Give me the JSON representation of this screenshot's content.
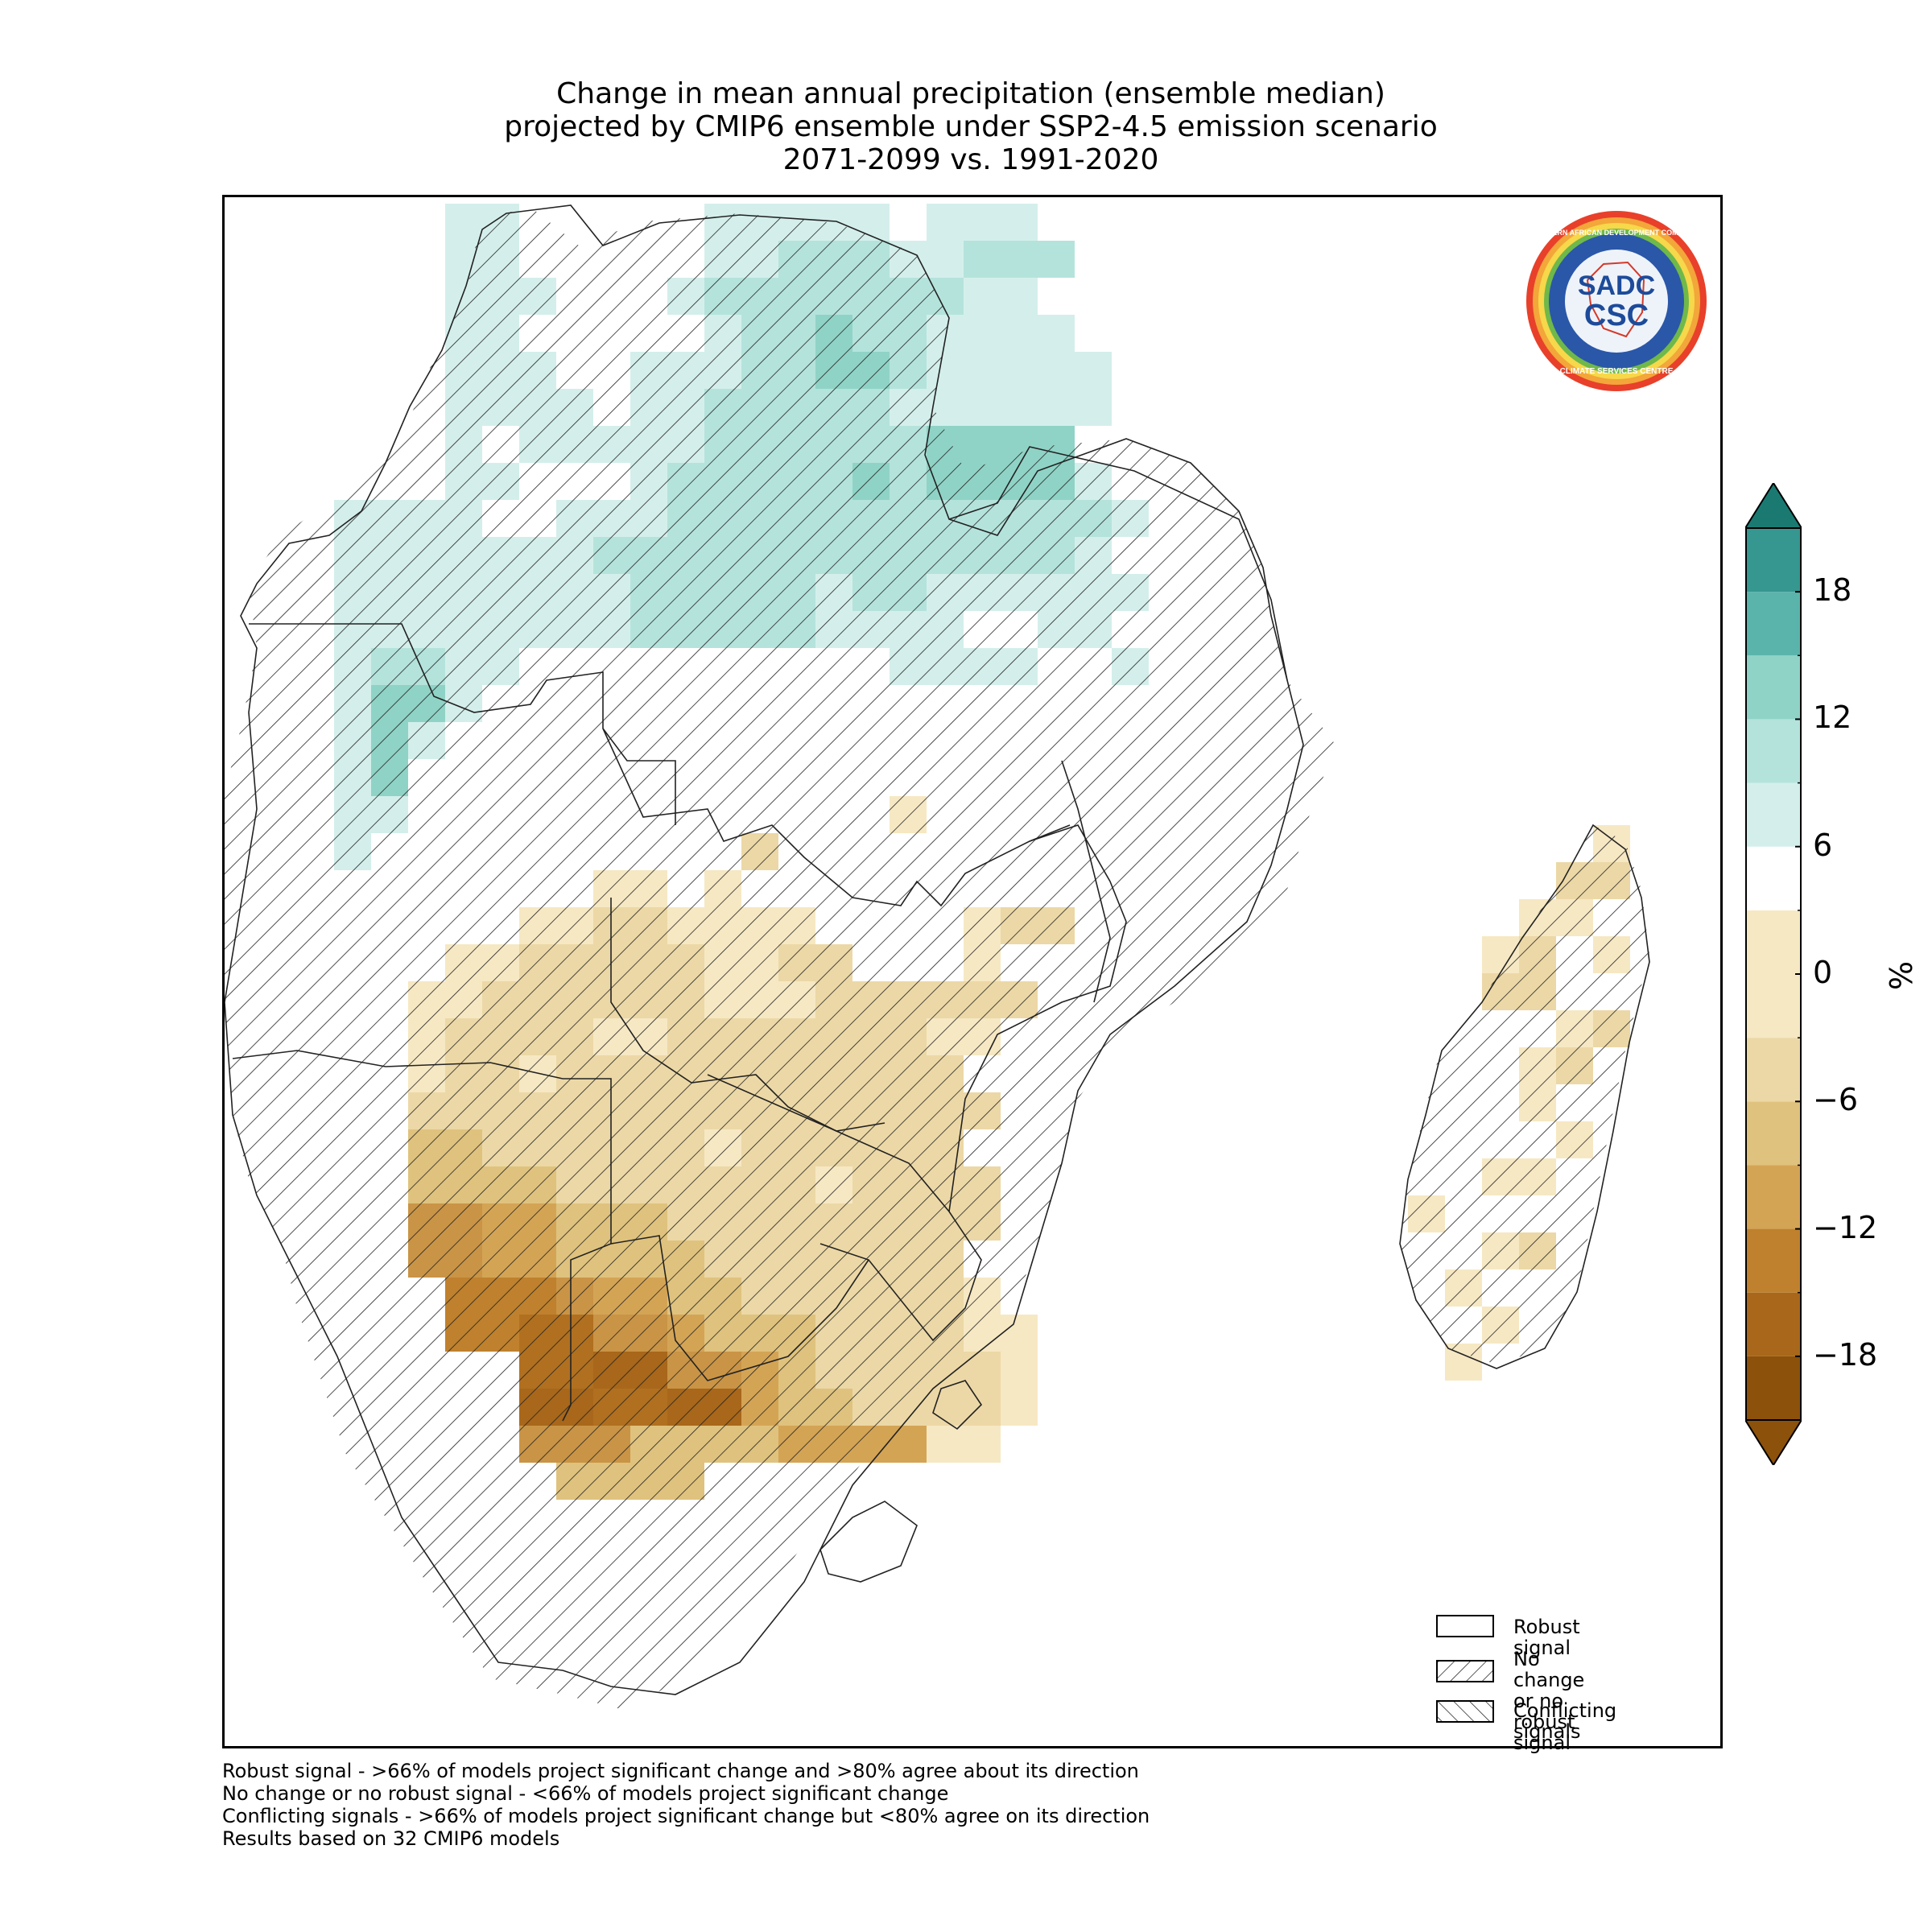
{
  "title": {
    "line1": "Change in mean annual precipitation (ensemble median)",
    "line2": "projected by CMIP6 ensemble under SSP2-4.5 emission scenario",
    "line3": "2071-2099 vs. 1991-2020"
  },
  "logo": {
    "ring_text_top": "SOUTHERN AFRICAN DEVELOPMENT COMMUNITY",
    "ring_text_bottom": "CLIMATE SERVICES CENTRE",
    "center_top": "SADC",
    "center_bottom": "CSC"
  },
  "legend": {
    "items": [
      {
        "label": "Robust signal",
        "pattern": "none"
      },
      {
        "label": "No change\nor no robust signal",
        "pattern": "diagonal-forward"
      },
      {
        "label": "Conflicting signals",
        "pattern": "diagonal-backward"
      }
    ]
  },
  "colorbar": {
    "unit": "%",
    "ticks": [
      "18",
      "12",
      "6",
      "0",
      "−6",
      "−12",
      "−18"
    ],
    "min": -21,
    "max": 21,
    "colors": [
      "#8c510a",
      "#a8671a",
      "#bf812d",
      "#d4a455",
      "#dfc27d",
      "#ecd8a6",
      "#f6e8c3",
      "#ffffff",
      "#d4efeb",
      "#b4e3dc",
      "#8fd3c6",
      "#5ab4ac",
      "#35978f",
      "#1a7a72"
    ],
    "bounds": [
      -21,
      -18,
      -15,
      -12,
      -9,
      -6,
      -3,
      3,
      6,
      9,
      12,
      15,
      18,
      21
    ]
  },
  "footnotes": [
    "Robust signal - >66% of models project significant change and >80% agree about its direction",
    "No change or no robust signal - <66% of models project significant change",
    "Conflicting signals - >66% of models project significant change but <80% agree on its direction",
    "Results based on 32 CMIP6 models"
  ],
  "map": {
    "grid_rows": [
      "......11.....11111.111...",
      "......11.....1122211222..",
      "......111...1222222211...",
      "......11.....1223221111..",
      "......111..1112233211111.",
      "......1111.1122222111111.",
      "......1.111112222223333..",
      "......11...1222223233331.",
      "...1111..1112222222222221",
      "...111111122222222222221.",
      "...1111111122222122111111",
      "...11111111222221111..11.",
      "...12211..........1111..1",
      "...1331..................",
      "...131....................",
      "...13.....................",
      "...11.............a.......",
      "...1..........b..........",
      "..........aa.a...........",
      "........aabbaaaa....abb..",
      "......aabbbbbaabb...a....",
      ".....aabbbbbbaaabbbbbb...",
      ".....abbbbaabbbbbbbaa....",
      ".....abbabbbbbbbbbbb.....",
      ".....bbbbbbbbbbbbbbbb....",
      ".....ccbbbbbbabbbbbb.....",
      ".....ccccbbbbbbbabbbb....",
      ".....eeddcccbbbbbbbbb....",
      ".....eeddccccbbbbbbb.....",
      "......fffeddccbbbbbba....",
      "......ffggeedcccbbbbaa...",
      "........gghheedcbbbbba...",
      "........hhgghhdccbbbba...",
      "........eeeccccddddaa....",
      ".........cccc............"
    ]
  }
}
